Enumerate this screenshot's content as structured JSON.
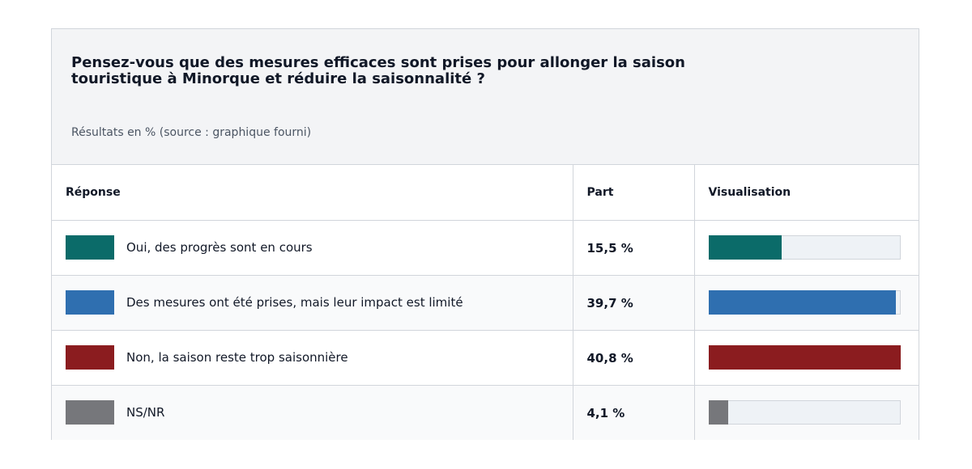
{
  "header": {
    "title": "Pensez-vous que des mesures efficaces sont prises pour allonger la saison touristique à Minorque et réduire la saisonnalité ?",
    "subtitle": "Résultats en % (source : graphique fourni)"
  },
  "table": {
    "col_response": "Réponse",
    "col_share": "Part",
    "col_visual": "Visualisation"
  },
  "chart_data": {
    "type": "bar",
    "title": "Pensez-vous que des mesures efficaces sont prises pour allonger la saison touristique à Minorque et réduire la saisonnalité ?",
    "subtitle": "Résultats en % (source : graphique fourni)",
    "scale_max": 40.8,
    "categories": [
      "Oui, des progrès sont en cours",
      "Des mesures ont été prises, mais leur impact est limité",
      "Non, la saison reste trop saisonnière",
      "NS/NR"
    ],
    "values": [
      15.5,
      39.7,
      40.8,
      4.1
    ],
    "value_labels": [
      "15,5 %",
      "39,7 %",
      "40,8 %",
      "4,1 %"
    ],
    "colors": [
      "#0b6b69",
      "#2f6fb0",
      "#8b1c1f",
      "#76777b"
    ]
  }
}
